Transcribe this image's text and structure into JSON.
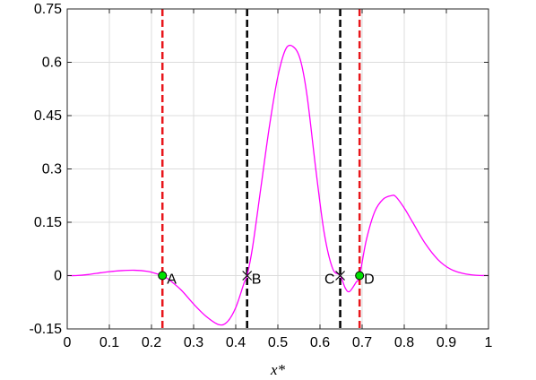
{
  "chart_data": {
    "type": "line",
    "title": "",
    "xlabel": "x*",
    "ylabel": "",
    "xlim": [
      0,
      1
    ],
    "ylim": [
      -0.15,
      0.75
    ],
    "xticks": [
      0,
      0.1,
      0.2,
      0.3,
      0.4,
      0.5,
      0.6,
      0.7,
      0.8,
      0.9,
      1
    ],
    "xtick_labels": [
      "0",
      "0.1",
      "0.2",
      "0.3",
      "0.4",
      "0.5",
      "0.6",
      "0.7",
      "0.8",
      "0.9",
      "1"
    ],
    "yticks": [
      -0.15,
      0,
      0.15,
      0.3,
      0.45,
      0.6,
      0.75
    ],
    "ytick_labels": [
      "-0.15",
      "0",
      "0.15",
      "0.3",
      "0.45",
      "0.6",
      "0.75"
    ],
    "grid": true,
    "series": [
      {
        "color": "#ff00ff",
        "x": [
          0,
          0.02,
          0.05,
          0.08,
          0.1,
          0.13,
          0.16,
          0.19,
          0.21,
          0.226,
          0.24,
          0.27,
          0.3,
          0.33,
          0.36,
          0.38,
          0.4,
          0.42,
          0.427,
          0.44,
          0.46,
          0.48,
          0.5,
          0.52,
          0.54,
          0.555,
          0.57,
          0.59,
          0.61,
          0.63,
          0.648,
          0.66,
          0.67,
          0.685,
          0.694,
          0.71,
          0.73,
          0.75,
          0.77,
          0.78,
          0.8,
          0.82,
          0.85,
          0.88,
          0.91,
          0.94,
          0.97,
          1.0
        ],
        "y": [
          0,
          0,
          0.003,
          0.008,
          0.011,
          0.014,
          0.015,
          0.012,
          0.006,
          0,
          -0.01,
          -0.04,
          -0.08,
          -0.115,
          -0.138,
          -0.13,
          -0.09,
          -0.02,
          0,
          0.08,
          0.25,
          0.42,
          0.56,
          0.64,
          0.64,
          0.6,
          0.5,
          0.3,
          0.12,
          0.02,
          0,
          -0.035,
          -0.045,
          -0.02,
          0,
          0.1,
          0.18,
          0.215,
          0.225,
          0.222,
          0.19,
          0.15,
          0.09,
          0.045,
          0.018,
          0.006,
          0.001,
          0
        ]
      }
    ],
    "vlines": [
      {
        "x": 0.226,
        "color": "#e8161b",
        "style": "dashed"
      },
      {
        "x": 0.427,
        "color": "#000000",
        "style": "dashed"
      },
      {
        "x": 0.648,
        "color": "#000000",
        "style": "dashed"
      },
      {
        "x": 0.694,
        "color": "#e8161b",
        "style": "dashed"
      }
    ],
    "points": [
      {
        "label": "A",
        "x": 0.226,
        "y": 0,
        "marker": "circle",
        "color": "#00e000",
        "label_side": "right"
      },
      {
        "label": "B",
        "x": 0.427,
        "y": 0,
        "marker": "x",
        "color": "#000000",
        "label_side": "right"
      },
      {
        "label": "C",
        "x": 0.648,
        "y": 0,
        "marker": "x",
        "color": "#000000",
        "label_side": "left"
      },
      {
        "label": "D",
        "x": 0.694,
        "y": 0,
        "marker": "circle",
        "color": "#00e000",
        "label_side": "right"
      }
    ]
  }
}
